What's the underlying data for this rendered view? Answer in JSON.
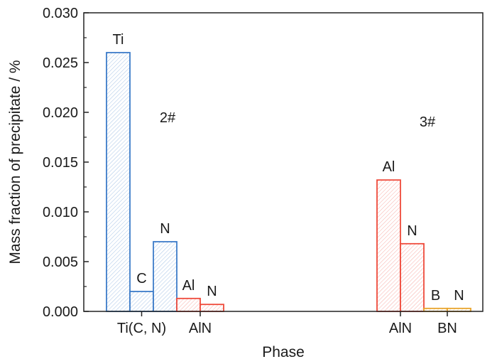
{
  "colors": {
    "blue": "#3d7cc9",
    "red": "#ef4a3b",
    "yellow": "#e8a32a",
    "axis": "#222222"
  },
  "chart_data": {
    "type": "bar",
    "title": "",
    "xlabel": "Phase",
    "ylabel": "Mass fraction of precipitate / %",
    "ylim": [
      0,
      0.03
    ],
    "y_ticks": [
      "0.000",
      "0.005",
      "0.010",
      "0.015",
      "0.020",
      "0.025",
      "0.030"
    ],
    "grid": false,
    "bar_fill": "diagonal hatch",
    "groups": [
      {
        "label": "2#",
        "phases": [
          {
            "name": "Ti(C, N)",
            "color": "blue",
            "bars": [
              {
                "element": "Ti",
                "value": 0.026
              },
              {
                "element": "C",
                "value": 0.002
              },
              {
                "element": "N",
                "value": 0.007
              }
            ]
          },
          {
            "name": "AlN",
            "color": "red",
            "bars": [
              {
                "element": "Al",
                "value": 0.0013
              },
              {
                "element": "N",
                "value": 0.0007
              }
            ]
          }
        ]
      },
      {
        "label": "3#",
        "phases": [
          {
            "name": "AlN",
            "color": "red",
            "bars": [
              {
                "element": "Al",
                "value": 0.0132
              },
              {
                "element": "N",
                "value": 0.0068
              }
            ]
          },
          {
            "name": "BN",
            "color": "yellow",
            "bars": [
              {
                "element": "B",
                "value": 0.0003
              },
              {
                "element": "N",
                "value": 0.0003
              }
            ]
          }
        ]
      }
    ]
  }
}
